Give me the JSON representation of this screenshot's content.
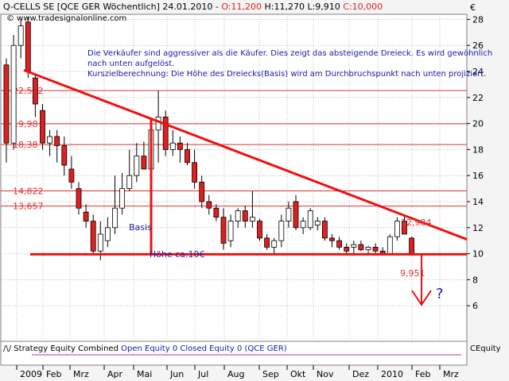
{
  "header": {
    "symbol": "Q-CELLS SE [QCE GER  Wöchentlich] 24.01.2010 -",
    "open": "O:11,200",
    "hlc": "H:11,270 L:9,910",
    "close": "C:10,000",
    "source": "© www.tradesignalonline.com",
    "currency": "€"
  },
  "notes": {
    "line1": "Die Verkäufer sind aggressiver als die Käufer. Dies zeigt das absteigende Dreieck. Es wird gewöhnlich",
    "line2": "nach unten aufgelöst.",
    "line3": "Kurszielberechnung: Die Höhe des Dreiecks(Basis) wird am Durchbruchspunkt nach unten projiziert."
  },
  "annotations": {
    "basis": "Basis",
    "hoehe": "Höhe ca.10€",
    "high_value": "12,984",
    "low_value": "9,951",
    "question": "?"
  },
  "level_labels": [
    "22,532",
    "19,98",
    "18,38",
    "14,822",
    "13,657"
  ],
  "indicator": {
    "title": "Strategy Equity Combined",
    "open": "Open Equity 0",
    "closed": "Closed Equity 0",
    "instrument": "(QCE GER)",
    "axis_label": "CEquity"
  },
  "colors": {
    "up": "#ffffff",
    "down": "#e02020",
    "trend": "#ee1111",
    "resistance": "#dd3333",
    "annotation": "#1a1aa8",
    "equity_line": "#b030b0"
  },
  "chart_data": {
    "type": "candlestick",
    "title": "Q-CELLS SE [QCE GER Wöchentlich]",
    "ylim": [
      4,
      29
    ],
    "yticks": [
      6,
      8,
      10,
      12,
      14,
      16,
      18,
      20,
      22,
      24,
      26,
      28
    ],
    "ylabel": "€",
    "grid": true,
    "months": [
      "2009",
      "Feb",
      "Mrz",
      "Apr",
      "Mai",
      "Jun",
      "Jul",
      "Aug",
      "Sep",
      "Okt",
      "Nov",
      "Dez",
      "2010",
      "Feb",
      "Mrz"
    ],
    "candles": [
      [
        24.5,
        25.0,
        17.0,
        18.5
      ],
      [
        18.5,
        26.8,
        18.0,
        26.0
      ],
      [
        26.0,
        28.0,
        25.0,
        27.5
      ],
      [
        27.8,
        28.2,
        23.5,
        24.0
      ],
      [
        23.5,
        23.8,
        20.5,
        21.5
      ],
      [
        21.0,
        21.5,
        18.0,
        18.5
      ],
      [
        18.5,
        19.5,
        17.5,
        19.0
      ],
      [
        19.0,
        19.5,
        17.0,
        18.3
      ],
      [
        18.3,
        19.0,
        16.0,
        16.8
      ],
      [
        16.5,
        17.5,
        15.0,
        15.5
      ],
      [
        15.0,
        15.5,
        13.0,
        13.5
      ],
      [
        13.2,
        13.8,
        12.0,
        12.5
      ],
      [
        12.5,
        13.0,
        9.9,
        10.2
      ],
      [
        10.2,
        12.5,
        9.5,
        11.5
      ],
      [
        11.0,
        12.8,
        10.5,
        12.0
      ],
      [
        12.0,
        16.0,
        11.5,
        13.5
      ],
      [
        13.5,
        16.2,
        13.0,
        15.0
      ],
      [
        15.0,
        18.0,
        14.8,
        16.0
      ],
      [
        16.0,
        18.5,
        15.5,
        17.5
      ],
      [
        17.5,
        18.6,
        16.5,
        16.5
      ],
      [
        16.5,
        20.0,
        15.5,
        19.5
      ],
      [
        19.5,
        22.5,
        17.0,
        20.5
      ],
      [
        20.5,
        21.0,
        17.5,
        18.0
      ],
      [
        18.0,
        19.5,
        17.5,
        18.5
      ],
      [
        18.5,
        19.0,
        17.0,
        18.0
      ],
      [
        18.0,
        18.5,
        16.8,
        17.0
      ],
      [
        17.0,
        18.0,
        15.0,
        15.5
      ],
      [
        15.5,
        16.0,
        13.5,
        14.0
      ],
      [
        14.0,
        14.5,
        13.0,
        13.5
      ],
      [
        13.5,
        13.8,
        12.5,
        12.8
      ],
      [
        12.8,
        13.5,
        10.3,
        10.8
      ],
      [
        11.0,
        13.0,
        10.5,
        12.5
      ],
      [
        12.5,
        13.5,
        12.0,
        13.3
      ],
      [
        13.3,
        13.7,
        12.0,
        12.5
      ],
      [
        12.5,
        14.8,
        12.0,
        12.8
      ],
      [
        12.5,
        12.7,
        11.0,
        11.2
      ],
      [
        11.2,
        11.5,
        10.3,
        10.5
      ],
      [
        10.5,
        11.2,
        10.0,
        11.0
      ],
      [
        11.0,
        13.0,
        10.5,
        12.5
      ],
      [
        12.5,
        14.0,
        12.0,
        13.5
      ],
      [
        14.0,
        14.5,
        11.8,
        12.0
      ],
      [
        12.0,
        12.8,
        11.5,
        12.5
      ],
      [
        12.0,
        13.5,
        11.8,
        13.3
      ],
      [
        12.2,
        12.8,
        11.8,
        12.5
      ],
      [
        12.5,
        12.8,
        11.0,
        11.2
      ],
      [
        11.2,
        11.5,
        10.5,
        11.0
      ],
      [
        11.0,
        11.3,
        10.3,
        10.5
      ],
      [
        10.5,
        10.8,
        10.0,
        10.2
      ],
      [
        10.5,
        11.0,
        10.0,
        10.7
      ],
      [
        10.7,
        11.0,
        10.2,
        10.3
      ],
      [
        10.3,
        10.6,
        9.9,
        10.5
      ],
      [
        10.5,
        10.8,
        10.0,
        10.2
      ],
      [
        10.2,
        10.5,
        9.9,
        10.0
      ],
      [
        10.0,
        11.5,
        9.9,
        11.3
      ],
      [
        11.3,
        12.8,
        11.0,
        12.5
      ],
      [
        12.5,
        13.0,
        11.5,
        11.5
      ],
      [
        11.2,
        11.3,
        9.9,
        10.0
      ]
    ],
    "horizontal_levels": [
      22.532,
      19.98,
      18.38,
      14.822,
      13.657
    ],
    "support": 9.951,
    "trendline": [
      [
        24.1,
        0
      ],
      [
        11.1,
        1
      ]
    ]
  }
}
